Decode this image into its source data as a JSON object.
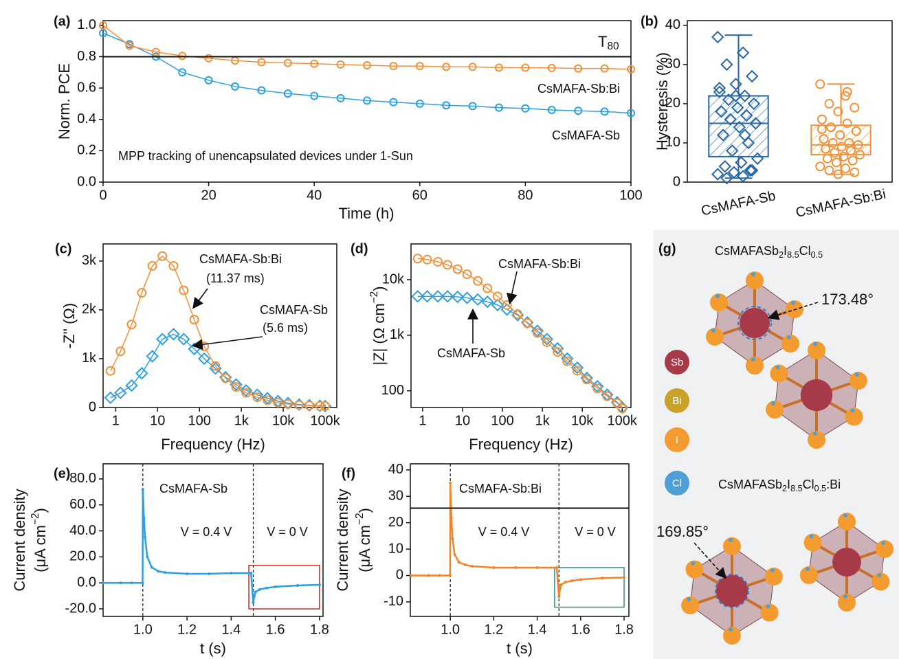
{
  "chart_data": [
    {
      "type": "line",
      "panel_label": "(a)",
      "x_label": "Time (h)",
      "y_label": [
        "Norm. PCE"
      ],
      "x": [
        0,
        5,
        10,
        15,
        20,
        25,
        30,
        35,
        40,
        45,
        50,
        55,
        60,
        65,
        70,
        75,
        80,
        85,
        90,
        95,
        100
      ],
      "series": [
        {
          "name": "CsMAFA-Sb",
          "color": "#2a9fe3",
          "marker": "circle",
          "values": [
            0.95,
            0.88,
            0.8,
            0.7,
            0.65,
            0.61,
            0.585,
            0.565,
            0.55,
            0.535,
            0.52,
            0.51,
            0.5,
            0.49,
            0.485,
            0.475,
            0.47,
            0.46,
            0.455,
            0.45,
            0.44
          ]
        },
        {
          "name": "CsMAFA-Sb:Bi",
          "color": "#f2913a",
          "marker": "circle",
          "values": [
            1.0,
            0.87,
            0.83,
            0.805,
            0.79,
            0.775,
            0.765,
            0.76,
            0.755,
            0.75,
            0.745,
            0.74,
            0.74,
            0.735,
            0.735,
            0.73,
            0.73,
            0.728,
            0.725,
            0.725,
            0.72
          ]
        }
      ],
      "hline": 0.8,
      "hline_label": [
        "T",
        "80"
      ],
      "annotations": [
        "MPP tracking of unencapsulated devices under 1-Sun"
      ],
      "xlim": [
        0,
        100
      ],
      "xticks": [
        0,
        20,
        40,
        60,
        80,
        100
      ],
      "ylim": [
        0,
        1.03
      ],
      "yticks": [
        {
          "value": 0,
          "label": "0.0"
        },
        0.2,
        0.4,
        0.6,
        0.8,
        {
          "value": 1,
          "label": "1.0"
        }
      ]
    },
    {
      "type": "box",
      "panel_label": "(b)",
      "y_label": [
        "Hysteresis (%)"
      ],
      "categories": [
        "CsMAFA-Sb",
        "CsMAFA-Sb:Bi"
      ],
      "series": [
        {
          "color": "#2566a8",
          "marker": "diamond",
          "min": 1,
          "q1": 6.5,
          "median": 15,
          "q3": 22,
          "max": 37.5,
          "points": [
            37,
            33,
            30,
            27,
            25,
            23,
            22,
            21,
            20,
            19,
            18,
            17,
            16,
            15,
            14,
            12,
            10,
            8,
            6,
            5,
            4,
            3,
            2.5,
            2,
            1.5,
            1,
            3,
            22,
            24,
            12
          ]
        },
        {
          "color": "#f0923a",
          "marker": "circle",
          "min": 2,
          "q1": 7,
          "median": 9.5,
          "q3": 14.5,
          "max": 25,
          "points": [
            25,
            22,
            20,
            19,
            18,
            16,
            15,
            14,
            13,
            12,
            11,
            10,
            10,
            9.5,
            9,
            8.5,
            8,
            7.5,
            7,
            6.5,
            6,
            5.5,
            5,
            4,
            3.5,
            3,
            2.5,
            2,
            13.5,
            23
          ]
        }
      ],
      "ylim": [
        0,
        41.2
      ],
      "yticks": [
        0,
        10,
        20,
        30,
        40
      ]
    },
    {
      "type": "line",
      "panel_label": "(c)",
      "x_label": "Frequency (Hz)",
      "y_label": [
        "-Z'' (Ω)"
      ],
      "xlog": true,
      "x": [
        0.75,
        1.3,
        2.4,
        4.2,
        7.5,
        13,
        24,
        42,
        75,
        130,
        240,
        420,
        750,
        1300,
        2400,
        4200,
        7500,
        13000,
        24000,
        42000,
        75000,
        100000
      ],
      "series": [
        {
          "name": "CsMAFA-Sb",
          "color": "#2a9fe3",
          "marker": "diamond",
          "values": [
            200,
            300,
            450,
            700,
            1050,
            1400,
            1500,
            1400,
            1200,
            1000,
            800,
            620,
            470,
            350,
            260,
            190,
            130,
            90,
            60,
            45,
            35,
            30
          ]
        },
        {
          "name": "CsMAFA-Sb:Bi",
          "color": "#f2913a",
          "marker": "circle",
          "values": [
            750,
            1150,
            1700,
            2350,
            2900,
            3100,
            2900,
            2400,
            1800,
            1250,
            850,
            600,
            420,
            300,
            210,
            150,
            100,
            70,
            50,
            40,
            30,
            30
          ]
        }
      ],
      "annotations": [
        "(11.37 ms)",
        "(5.6 ms)"
      ],
      "xlim": [
        0.5,
        190000
      ],
      "xticks": [
        1,
        10,
        100,
        {
          "value": 1000,
          "label": "1k"
        },
        {
          "value": 10000,
          "label": "10k"
        },
        {
          "value": 100000,
          "label": "100k"
        }
      ],
      "ylim": [
        0,
        3350
      ],
      "yticks": [
        0,
        {
          "value": 1000,
          "label": "1k"
        },
        {
          "value": 2000,
          "label": "2k"
        },
        {
          "value": 3000,
          "label": "3k"
        }
      ]
    },
    {
      "type": "line",
      "panel_label": "(d)",
      "x_label": "Frequency (Hz)",
      "y_label": [
        [
          "|Z| (Ω cm",
          "−2",
          ")"
        ]
      ],
      "xlog": true,
      "ylog": true,
      "x": [
        0.75,
        1.3,
        2.4,
        4.2,
        7.5,
        13,
        24,
        42,
        75,
        130,
        240,
        420,
        750,
        1300,
        2400,
        4200,
        7500,
        13000,
        24000,
        42000,
        75000,
        100000
      ],
      "series": [
        {
          "name": "CsMAFA-Sb",
          "color": "#2a9fe3",
          "marker": "diamond",
          "values": [
            5000,
            5000,
            5000,
            5000,
            4900,
            4700,
            4400,
            4000,
            3500,
            2900,
            2300,
            1700,
            1200,
            850,
            580,
            380,
            260,
            170,
            120,
            85,
            62,
            50
          ]
        },
        {
          "name": "CsMAFA-Sb:Bi",
          "color": "#f2913a",
          "marker": "circle",
          "values": [
            24000,
            23000,
            21000,
            18500,
            15500,
            12500,
            9500,
            7000,
            5000,
            3500,
            2400,
            1650,
            1100,
            750,
            500,
            340,
            230,
            160,
            110,
            80,
            60,
            48
          ]
        }
      ],
      "xlim": [
        0.51,
        166000
      ],
      "xticks": [
        1,
        10,
        100,
        {
          "value": 1000,
          "label": "1k"
        },
        {
          "value": 10000,
          "label": "10k"
        },
        {
          "value": 100000,
          "label": "100k"
        }
      ],
      "ylim": [
        50,
        44000
      ],
      "yticks": [
        100,
        {
          "value": 1000,
          "label": "1k"
        },
        {
          "value": 10000,
          "label": "10k"
        }
      ]
    },
    {
      "type": "line",
      "panel_label": "(e)",
      "x_label": "t (s)",
      "y_label": [
        "Current density",
        [
          "(μA cm",
          "−2",
          ")"
        ]
      ],
      "x": [
        0.82,
        0.9,
        0.95,
        0.999,
        1.0,
        1.005,
        1.01,
        1.02,
        1.04,
        1.07,
        1.1,
        1.2,
        1.3,
        1.4,
        1.49,
        1.5,
        1.505,
        1.51,
        1.53,
        1.56,
        1.6,
        1.7,
        1.8
      ],
      "series": [
        {
          "name": "CsMAFA-Sb",
          "color": "#2a9fe3",
          "marker": "dot",
          "values": [
            0,
            0,
            0,
            0,
            72,
            50,
            35,
            20,
            12,
            9,
            8,
            7,
            7,
            7.5,
            7.5,
            -15,
            -10,
            -7,
            -5,
            -4,
            -3,
            -2,
            -1.5
          ]
        }
      ],
      "vlines": [
        1.0,
        1.5
      ],
      "highlight": {
        "x": [
          1.48,
          1.8
        ],
        "y": [
          -20,
          13.5
        ],
        "color": "#c0302e"
      },
      "annotations": [
        "V = 0.4 V",
        "V = 0 V"
      ],
      "xlim": [
        0.82,
        1.816
      ],
      "xticks": [
        {
          "value": 1,
          "label": "1.0"
        },
        1.2,
        1.4,
        1.6,
        1.8
      ],
      "ylim": [
        -25.8,
        91.6
      ],
      "yticks": [
        {
          "value": -20,
          "label": "-20.0"
        },
        {
          "value": 0,
          "label": "0.0"
        },
        {
          "value": 20,
          "label": "20.0"
        },
        {
          "value": 40,
          "label": "40.0"
        },
        {
          "value": 60,
          "label": "60.0"
        },
        {
          "value": 80,
          "label": "80.0"
        }
      ]
    },
    {
      "type": "line",
      "panel_label": "(f)",
      "x_label": "t (s)",
      "y_label": [
        "Current density",
        [
          "(μA cm",
          "−2",
          ")"
        ]
      ],
      "x": [
        0.82,
        0.9,
        0.95,
        0.999,
        1.0,
        1.005,
        1.01,
        1.02,
        1.04,
        1.07,
        1.1,
        1.2,
        1.3,
        1.4,
        1.49,
        1.5,
        1.505,
        1.51,
        1.53,
        1.56,
        1.6,
        1.7,
        1.8
      ],
      "series": [
        {
          "name": "CsMAFA-Sb:Bi",
          "color": "#f0842a",
          "marker": "dot",
          "values": [
            0,
            0,
            0,
            0,
            35,
            22,
            14,
            8,
            5,
            4,
            3.5,
            3,
            3,
            3,
            3,
            -8,
            -5,
            -3.5,
            -2.5,
            -2,
            -1.5,
            -1,
            -0.8
          ]
        }
      ],
      "hline": 25.5,
      "vlines": [
        1.0,
        1.5
      ],
      "highlight": {
        "x": [
          1.48,
          1.8
        ],
        "y": [
          -12,
          3
        ],
        "color": "#2e8b8b"
      },
      "annotations": [
        "V = 0.4 V",
        "V = 0 V"
      ],
      "xlim": [
        0.816,
        1.822
      ],
      "xticks": [
        {
          "value": 1,
          "label": "1.0"
        },
        1.2,
        1.4,
        1.6,
        1.8
      ],
      "ylim": [
        -15.5,
        42.3
      ],
      "yticks": [
        -10,
        0,
        10,
        20,
        30,
        40
      ]
    }
  ],
  "structure": {
    "panel_label": "(g)",
    "titles": [
      [
        "CsMAFASb",
        "2",
        "I",
        "8.5",
        "Cl",
        "0.5"
      ],
      [
        "CsMAFASb",
        "2",
        "I",
        "8.5",
        "Cl",
        "0.5",
        ":Bi"
      ]
    ],
    "angles": [
      "173.48°",
      "169.85°"
    ],
    "elements": [
      {
        "name": "Sb",
        "color": "#a63a48"
      },
      {
        "name": "Bi",
        "color": "#c9a227"
      },
      {
        "name": "I",
        "color": "#f39b2f"
      },
      {
        "name": "Cl",
        "color": "#4f9fd5"
      }
    ]
  }
}
